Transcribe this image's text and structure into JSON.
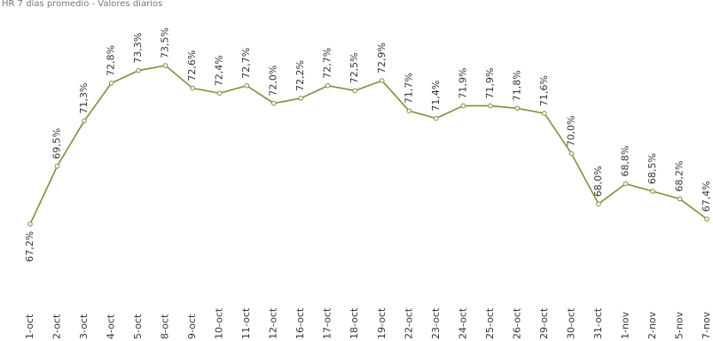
{
  "chart_data": {
    "type": "line",
    "title": "HR 7 días promedio - Valores diarios",
    "categories": [
      "1-oct",
      "2-oct",
      "3-oct",
      "4-oct",
      "5-oct",
      "8-oct",
      "9-oct",
      "10-oct",
      "11-oct",
      "12-oct",
      "16-oct",
      "17-oct",
      "18-oct",
      "19-oct",
      "22-oct",
      "23-oct",
      "24-oct",
      "25-oct",
      "26-oct",
      "29-oct",
      "30-oct",
      "31-oct",
      "1-nov",
      "2-nov",
      "5-nov",
      "7-nov"
    ],
    "series": [
      {
        "name": "Valores diarios",
        "color": "#77933c",
        "values": [
          67.2,
          69.5,
          71.3,
          72.8,
          73.3,
          73.5,
          72.6,
          72.4,
          72.7,
          72.0,
          72.2,
          72.7,
          72.5,
          72.9,
          71.7,
          71.4,
          71.9,
          71.9,
          71.8,
          71.6,
          70.0,
          68.0,
          68.8,
          68.5,
          68.2,
          67.4
        ],
        "value_labels": [
          "67,2%",
          "69,5%",
          "71,3%",
          "72,8%",
          "73,3%",
          "73,5%",
          "72,6%",
          "72,4%",
          "72,7%",
          "72,0%",
          "72,2%",
          "72,7%",
          "72,5%",
          "72,9%",
          "71,7%",
          "71,4%",
          "71,9%",
          "71,9%",
          "71,8%",
          "71,6%",
          "70,0%",
          "68,0%",
          "68,8%",
          "68,5%",
          "68,2%",
          "67,4%"
        ]
      }
    ],
    "ylim": [
      66,
      76
    ]
  }
}
